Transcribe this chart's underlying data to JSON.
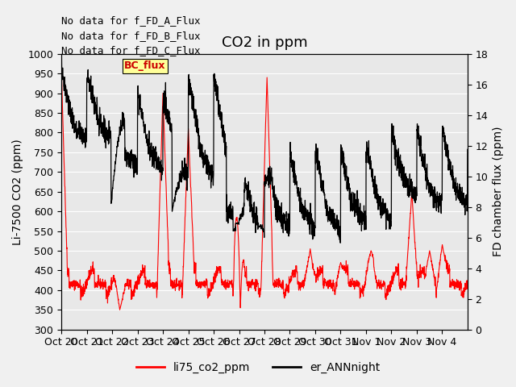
{
  "title": "CO2 in ppm",
  "ylabel_left": "Li-7500 CO2 (ppm)",
  "ylabel_right": "FD chamber flux (ppm)",
  "ylim_left": [
    300,
    1000
  ],
  "ylim_right": [
    0,
    18
  ],
  "yticks_left": [
    300,
    350,
    400,
    450,
    500,
    550,
    600,
    650,
    700,
    750,
    800,
    850,
    900,
    950,
    1000
  ],
  "yticks_right": [
    0,
    2,
    4,
    6,
    8,
    10,
    12,
    14,
    16,
    18
  ],
  "xtick_labels": [
    "Oct 20",
    "Oct 21",
    "Oct 22",
    "Oct 23",
    "Oct 24",
    "Oct 25",
    "Oct 26",
    "Oct 27",
    "Oct 28",
    "Oct 29",
    "Oct 30",
    "Oct 31",
    "Nov 1",
    "Nov 2",
    "Nov 3",
    "Nov 4"
  ],
  "annotations": [
    "No data for f_FD_A_Flux",
    "No data for f_FD_B_Flux",
    "No data for f_FD_C_Flux"
  ],
  "legend_label_bc": "BC_flux",
  "legend_label_red": "li75_co2_ppm",
  "legend_label_black": "er_ANNnight",
  "color_red": "#ff0000",
  "color_black": "#000000",
  "color_bc_bg": "#ffff99",
  "color_bc_text": "#cc0000",
  "bg_color": "#e8e8e8",
  "grid_color": "#ffffff",
  "title_fontsize": 13,
  "label_fontsize": 10,
  "tick_fontsize": 9,
  "annot_fontsize": 9
}
